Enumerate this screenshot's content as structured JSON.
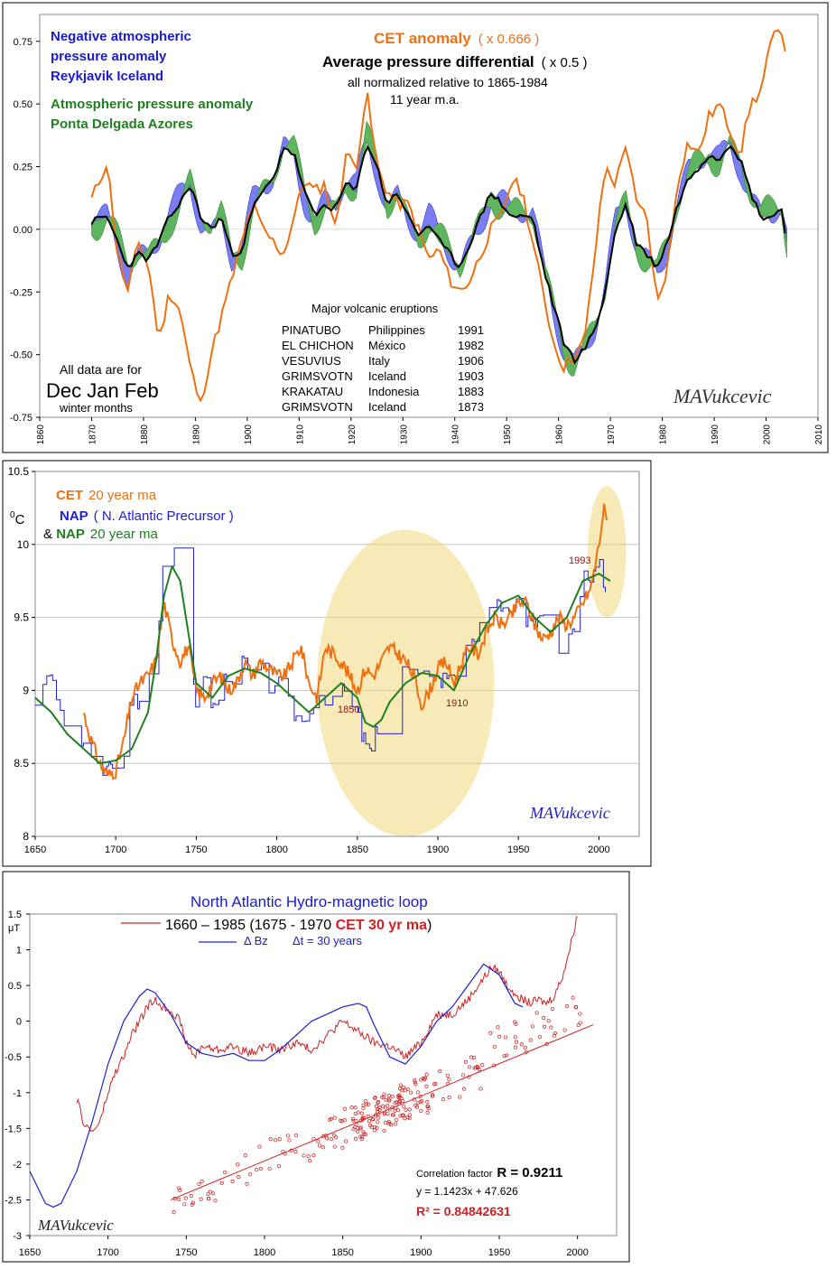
{
  "chart_data": [
    {
      "type": "area",
      "title_lines": [
        {
          "text": "CET anomaly",
          "extra": "( x 0.666 )"
        },
        {
          "text": "Average pressure differential",
          "extra": "( x 0.5 )"
        },
        {
          "text": "all normalized relative to 1865-1984"
        },
        {
          "text": "11 year m.a."
        }
      ],
      "legend_left": [
        "Negative atmospheric",
        "pressure anomaly",
        "Reykjavik Iceland",
        "Atmospheric pressure anomaly",
        "Ponta Delgada Azores"
      ],
      "note_lines": [
        "All data are for",
        "Dec Jan Feb",
        "winter months"
      ],
      "volcano_title": "Major volcanic eruptions",
      "volcanoes": [
        [
          "PINATUBO",
          "Philippines",
          "1991"
        ],
        [
          "EL CHICHON",
          "México",
          "1982"
        ],
        [
          "VESUVIUS",
          "Italy",
          "1906"
        ],
        [
          "GRIMSVOTN",
          "Iceland",
          "1903"
        ],
        [
          "KRAKATAU",
          "Indonesia",
          "1883"
        ],
        [
          "GRIMSVOTN",
          "Iceland",
          "1873"
        ]
      ],
      "signature": "MAVukcevic",
      "xlim": [
        1860,
        2010
      ],
      "ylim": [
        -0.75,
        0.85
      ],
      "x_ticks": [
        "1860",
        "1870",
        "1880",
        "1890",
        "1900",
        "1910",
        "1920",
        "1930",
        "1940",
        "1950",
        "1960",
        "1970",
        "1980",
        "1990",
        "2000",
        "2010"
      ],
      "y_ticks": [
        "0.75",
        "0.50",
        "0.25",
        "0.00",
        "-0.25",
        "-0.50",
        "-0.75"
      ],
      "colors": {
        "cet": "#f07010",
        "blue_fill": "#7a7ef0",
        "green_fill": "#5fb45f",
        "avg": "#000000"
      },
      "series": [
        {
          "name": "CET anomaly",
          "x": [
            1870,
            1873,
            1875,
            1877,
            1879,
            1881,
            1883,
            1885,
            1887,
            1889,
            1891,
            1893,
            1895,
            1897,
            1899,
            1901,
            1903,
            1905,
            1907,
            1909,
            1911,
            1913,
            1915,
            1917,
            1919,
            1921,
            1923,
            1925,
            1927,
            1929,
            1931,
            1933,
            1935,
            1937,
            1939,
            1941,
            1943,
            1945,
            1947,
            1949,
            1951,
            1953,
            1955,
            1957,
            1959,
            1961,
            1963,
            1965,
            1967,
            1969,
            1971,
            1973,
            1975,
            1977,
            1979,
            1981,
            1983,
            1985,
            1987,
            1989,
            1991,
            1993,
            1995,
            1997,
            1999,
            2001,
            2003,
            2004
          ],
          "values": [
            0.12,
            0.27,
            -0.1,
            -0.25,
            -0.05,
            -0.15,
            -0.45,
            -0.25,
            -0.32,
            -0.55,
            -0.7,
            -0.5,
            -0.35,
            -0.2,
            -0.05,
            0.1,
            0.0,
            -0.05,
            -0.1,
            0.05,
            0.2,
            0.15,
            0.18,
            0.0,
            0.3,
            0.25,
            0.55,
            0.25,
            0.15,
            0.1,
            0.1,
            0.0,
            -0.12,
            -0.08,
            -0.2,
            -0.25,
            -0.2,
            -0.1,
            0.0,
            0.05,
            0.2,
            0.15,
            -0.05,
            -0.25,
            -0.45,
            -0.55,
            -0.5,
            -0.45,
            -0.1,
            0.25,
            0.18,
            0.35,
            0.1,
            0.05,
            -0.3,
            -0.15,
            0.2,
            0.35,
            0.3,
            0.45,
            0.5,
            0.4,
            0.3,
            0.5,
            0.55,
            0.75,
            0.8,
            0.68
          ]
        },
        {
          "name": "Average pressure differential",
          "x": [
            1870,
            1873,
            1875,
            1877,
            1879,
            1881,
            1883,
            1885,
            1887,
            1889,
            1891,
            1893,
            1895,
            1897,
            1899,
            1901,
            1903,
            1905,
            1907,
            1909,
            1911,
            1913,
            1915,
            1917,
            1919,
            1921,
            1923,
            1925,
            1927,
            1929,
            1931,
            1933,
            1935,
            1937,
            1939,
            1941,
            1943,
            1945,
            1947,
            1949,
            1951,
            1953,
            1955,
            1957,
            1959,
            1961,
            1963,
            1965,
            1967,
            1969,
            1971,
            1973,
            1975,
            1977,
            1979,
            1981,
            1983,
            1985,
            1987,
            1989,
            1991,
            1993,
            1995,
            1997,
            1999,
            2001,
            2003,
            2004
          ],
          "values": [
            0.03,
            0.05,
            -0.05,
            -0.15,
            -0.1,
            -0.12,
            -0.05,
            0.05,
            0.1,
            0.18,
            0.05,
            0.0,
            0.05,
            -0.1,
            -0.08,
            0.08,
            0.15,
            0.2,
            0.33,
            0.3,
            0.15,
            0.05,
            0.1,
            0.08,
            0.18,
            0.15,
            0.35,
            0.25,
            0.1,
            0.15,
            0.05,
            -0.02,
            0.02,
            -0.05,
            -0.1,
            -0.15,
            -0.05,
            0.05,
            0.15,
            0.1,
            0.05,
            0.05,
            0.05,
            -0.15,
            -0.3,
            -0.45,
            -0.52,
            -0.48,
            -0.4,
            -0.25,
            0.0,
            0.1,
            -0.05,
            -0.1,
            -0.15,
            -0.05,
            0.1,
            0.2,
            0.25,
            0.3,
            0.28,
            0.35,
            0.28,
            0.15,
            0.05,
            0.05,
            0.08,
            -0.05
          ]
        }
      ]
    },
    {
      "type": "line",
      "legend": [
        {
          "name": "CET",
          "extra": "20 year ma"
        },
        {
          "name": "NAP",
          "extra": "( N. Atlantic Precursor )"
        },
        {
          "prefix": "& ",
          "name": "NAP",
          "extra": "20 year ma"
        }
      ],
      "ylabel": "0C",
      "annotations": [
        "1850",
        "1910",
        "1993"
      ],
      "signature": "MAVukcevic",
      "xlim": [
        1650,
        2025
      ],
      "ylim": [
        8,
        10.5
      ],
      "x_ticks": [
        "1650",
        "1700",
        "1750",
        "1800",
        "1850",
        "1900",
        "1950",
        "2000"
      ],
      "y_ticks": [
        "10.5",
        "10",
        "9.5",
        "9",
        "8.5",
        "8"
      ],
      "colors": {
        "cet": "#f07010",
        "nap": "#2020d0",
        "nap_ma": "#208020",
        "highlight": "#f0d060"
      },
      "series": [
        {
          "name": "CET",
          "x": [
            1680,
            1685,
            1690,
            1695,
            1700,
            1705,
            1710,
            1715,
            1720,
            1725,
            1730,
            1735,
            1740,
            1745,
            1750,
            1755,
            1760,
            1765,
            1770,
            1775,
            1780,
            1785,
            1790,
            1795,
            1800,
            1805,
            1810,
            1815,
            1820,
            1825,
            1830,
            1835,
            1840,
            1845,
            1850,
            1855,
            1860,
            1865,
            1870,
            1875,
            1880,
            1885,
            1890,
            1895,
            1900,
            1905,
            1910,
            1915,
            1920,
            1925,
            1930,
            1935,
            1940,
            1945,
            1950,
            1955,
            1960,
            1965,
            1970,
            1975,
            1980,
            1985,
            1990,
            1995,
            2000,
            2003,
            2005
          ],
          "values": [
            8.85,
            8.65,
            8.5,
            8.42,
            8.45,
            8.65,
            8.95,
            9.05,
            9.1,
            9.2,
            9.6,
            9.35,
            9.2,
            9.3,
            9.0,
            8.95,
            9.05,
            9.1,
            9.0,
            9.05,
            9.2,
            9.1,
            9.2,
            9.15,
            9.1,
            9.1,
            9.2,
            9.3,
            9.05,
            8.95,
            9.3,
            9.25,
            9.2,
            9.1,
            9.0,
            9.15,
            9.1,
            9.2,
            9.3,
            9.25,
            9.2,
            9.1,
            8.9,
            9.0,
            9.15,
            9.2,
            9.05,
            9.2,
            9.3,
            9.25,
            9.4,
            9.5,
            9.45,
            9.5,
            9.6,
            9.6,
            9.45,
            9.35,
            9.4,
            9.5,
            9.45,
            9.5,
            9.6,
            9.7,
            10.0,
            10.25,
            10.15
          ]
        },
        {
          "name": "NAP",
          "x": [
            1650,
            1655,
            1660,
            1665,
            1670,
            1675,
            1680,
            1685,
            1690,
            1695,
            1700,
            1705,
            1710,
            1715,
            1720,
            1725,
            1728,
            1730,
            1735,
            1740,
            1745,
            1750,
            1755,
            1760,
            1765,
            1770,
            1775,
            1780,
            1785,
            1790,
            1795,
            1800,
            1805,
            1810,
            1815,
            1820,
            1825,
            1830,
            1835,
            1840,
            1845,
            1850,
            1855,
            1860,
            1865,
            1870,
            1875,
            1880,
            1885,
            1890,
            1895,
            1900,
            1905,
            1910,
            1915,
            1920,
            1925,
            1930,
            1935,
            1940,
            1945,
            1950,
            1955,
            1960,
            1965,
            1970,
            1975,
            1980,
            1985,
            1990,
            1995,
            2000,
            2005
          ],
          "values": [
            8.9,
            9.0,
            9.15,
            8.9,
            8.65,
            8.65,
            8.65,
            8.55,
            8.45,
            8.45,
            8.45,
            8.55,
            8.95,
            8.9,
            9.05,
            9.2,
            9.7,
            10.05,
            10.05,
            9.6,
            9.3,
            8.85,
            9.1,
            8.9,
            8.95,
            9.15,
            9.05,
            9.25,
            9.0,
            9.2,
            8.95,
            9.1,
            9.0,
            8.85,
            8.75,
            8.85,
            8.9,
            8.95,
            8.9,
            9.05,
            9.0,
            8.85,
            8.6,
            8.65,
            8.85,
            8.95,
            9.1,
            9.2,
            9.15,
            9.15,
            9.1,
            9.05,
            9.1,
            9.05,
            9.2,
            9.3,
            9.4,
            9.5,
            9.65,
            9.55,
            9.5,
            9.7,
            9.45,
            9.45,
            9.5,
            9.35,
            9.3,
            9.35,
            9.45,
            9.8,
            9.7,
            9.9,
            9.65
          ]
        },
        {
          "name": "NAP 20 year ma",
          "x": [
            1650,
            1660,
            1670,
            1680,
            1690,
            1700,
            1710,
            1720,
            1725,
            1730,
            1735,
            1740,
            1745,
            1750,
            1760,
            1770,
            1780,
            1790,
            1800,
            1810,
            1820,
            1830,
            1840,
            1850,
            1855,
            1860,
            1865,
            1870,
            1880,
            1890,
            1900,
            1910,
            1920,
            1930,
            1940,
            1950,
            1960,
            1970,
            1980,
            1990,
            2000,
            2007
          ],
          "values": [
            8.95,
            8.85,
            8.7,
            8.6,
            8.5,
            8.52,
            8.6,
            8.85,
            9.2,
            9.65,
            9.85,
            9.75,
            9.4,
            9.05,
            8.95,
            9.1,
            9.15,
            9.12,
            9.05,
            8.95,
            8.85,
            8.95,
            9.05,
            8.95,
            8.78,
            8.75,
            8.8,
            8.92,
            9.05,
            9.12,
            9.1,
            9.0,
            9.25,
            9.45,
            9.6,
            9.65,
            9.5,
            9.4,
            9.5,
            9.75,
            9.8,
            9.75
          ]
        }
      ]
    },
    {
      "type": "scatter",
      "title": "North Atlantic Hydro-magnetic loop",
      "legend": [
        {
          "text": "1660 – 1985 (1675 - 1970 ",
          "accent": "CET 30 yr ma",
          "close": ")"
        },
        {
          "text": "Δ Bz",
          "extra": "Δt = 30 years"
        }
      ],
      "ylabel": "μT",
      "stats": {
        "label": "Correlation factor",
        "r": "R = 0.9211",
        "equation": "y = 1.1423x + 47.626",
        "r2": "R² = 0.84842631"
      },
      "signature": "MAVukcevic",
      "xlim": [
        1650,
        2025
      ],
      "ylim": [
        -3,
        1.5
      ],
      "x_ticks": [
        "1650",
        "1700",
        "1750",
        "1800",
        "1850",
        "1900",
        "1950",
        "2000"
      ],
      "y_ticks": [
        "1.5",
        "1",
        "0.5",
        "0",
        "-0.5",
        "-1",
        "-1.5",
        "-2",
        "-2.5",
        "-3"
      ],
      "colors": {
        "cet": "#d02020",
        "bz": "#2020d0"
      },
      "series": [
        {
          "name": "CET 30 yr ma",
          "x": [
            1680,
            1685,
            1690,
            1695,
            1700,
            1705,
            1710,
            1715,
            1720,
            1725,
            1730,
            1735,
            1740,
            1745,
            1750,
            1755,
            1760,
            1770,
            1780,
            1790,
            1800,
            1810,
            1820,
            1830,
            1840,
            1850,
            1860,
            1870,
            1880,
            1890,
            1900,
            1910,
            1920,
            1930,
            1940,
            1945,
            1950,
            1955,
            1960,
            1965,
            1970,
            1975,
            1980,
            1985,
            1990,
            1995,
            2000
          ],
          "values": [
            -1.1,
            -1.45,
            -1.55,
            -1.4,
            -1.0,
            -0.7,
            -0.5,
            -0.2,
            0.0,
            0.2,
            0.3,
            0.2,
            0.15,
            0.05,
            -0.3,
            -0.5,
            -0.35,
            -0.4,
            -0.35,
            -0.45,
            -0.35,
            -0.4,
            -0.3,
            -0.4,
            -0.2,
            0.0,
            -0.15,
            -0.3,
            -0.35,
            -0.5,
            -0.3,
            0.1,
            0.1,
            0.3,
            0.6,
            0.75,
            0.7,
            0.5,
            0.4,
            0.3,
            0.25,
            0.3,
            0.25,
            0.35,
            0.6,
            1.0,
            1.5
          ]
        },
        {
          "name": "Δ Bz",
          "x": [
            1650,
            1660,
            1665,
            1670,
            1680,
            1690,
            1700,
            1710,
            1720,
            1725,
            1730,
            1740,
            1750,
            1760,
            1770,
            1780,
            1790,
            1800,
            1810,
            1820,
            1830,
            1840,
            1850,
            1860,
            1865,
            1870,
            1880,
            1890,
            1900,
            1910,
            1920,
            1930,
            1940,
            1950,
            1960,
            1965
          ],
          "values": [
            -2.1,
            -2.55,
            -2.6,
            -2.55,
            -2.1,
            -1.4,
            -0.6,
            0.0,
            0.35,
            0.45,
            0.4,
            0.1,
            -0.3,
            -0.45,
            -0.5,
            -0.45,
            -0.55,
            -0.55,
            -0.4,
            -0.2,
            0.0,
            0.1,
            0.2,
            0.25,
            0.2,
            -0.05,
            -0.5,
            -0.6,
            -0.35,
            0.0,
            0.2,
            0.5,
            0.8,
            0.65,
            0.25,
            0.2
          ]
        },
        {
          "name": "regression",
          "x": [
            1740,
            2010
          ],
          "values": [
            -2.5,
            -0.05
          ]
        }
      ]
    }
  ]
}
